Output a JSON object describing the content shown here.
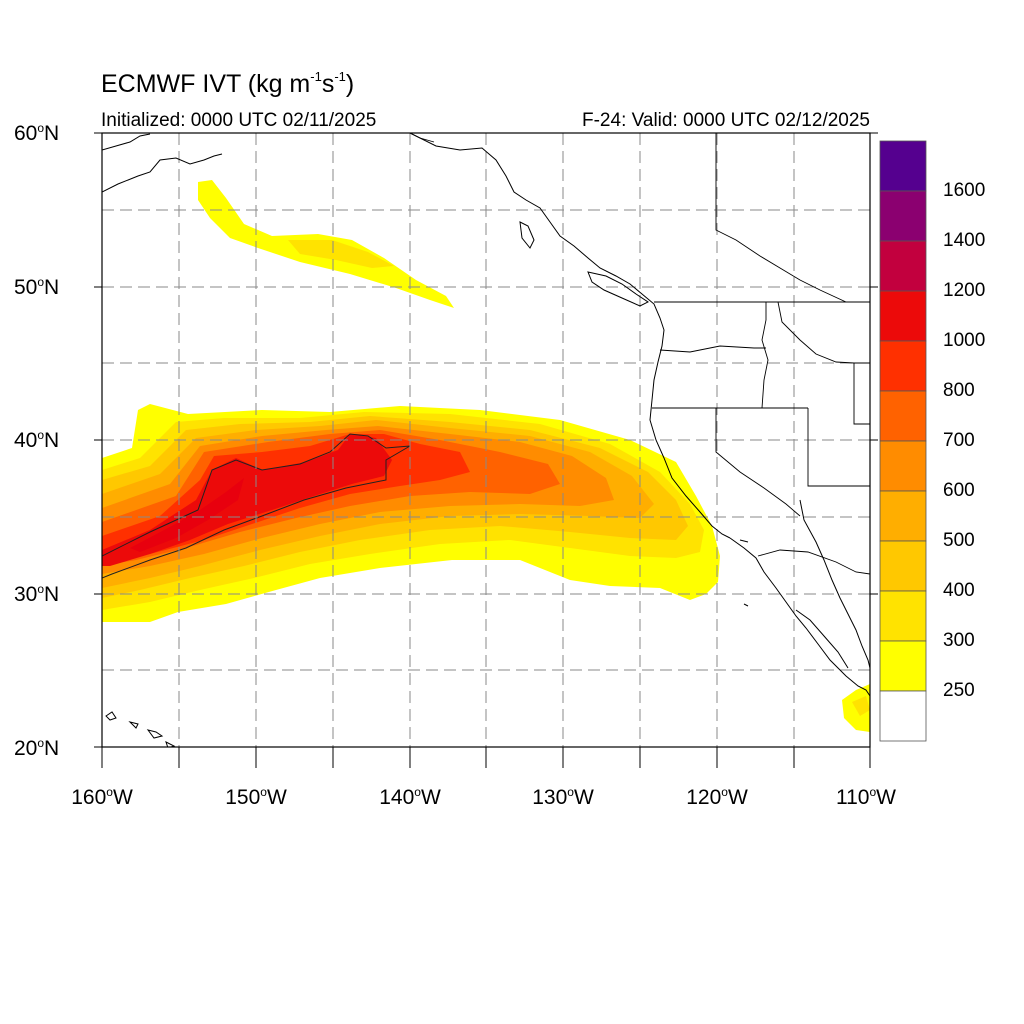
{
  "header": {
    "title_main": "ECMWF IVT (kg m",
    "title_exp1": "-1",
    "title_mid": "s",
    "title_exp2": "-1",
    "title_end": ")",
    "initialized": "Initialized: 0000 UTC 02/11/2025",
    "valid": "F-24: Valid: 0000 UTC 02/12/2025"
  },
  "map": {
    "lat_labels": [
      "60",
      "50",
      "40",
      "30",
      "20"
    ],
    "lat_suffix": "N",
    "lon_labels": [
      "160",
      "150",
      "140",
      "130",
      "120",
      "110"
    ],
    "lon_suffix": "W",
    "degree_symbol": "o"
  },
  "colorbar": {
    "labels": [
      "1600",
      "1400",
      "1200",
      "1000",
      "800",
      "700",
      "600",
      "500",
      "400",
      "300",
      "250"
    ],
    "colors": [
      "#55008f",
      "#8b0070",
      "#c2003e",
      "#ec0a0a",
      "#ff3000",
      "#ff6200",
      "#ff8c00",
      "#ffae00",
      "#ffc800",
      "#ffe300",
      "#ffff00",
      "#ffffff"
    ]
  }
}
